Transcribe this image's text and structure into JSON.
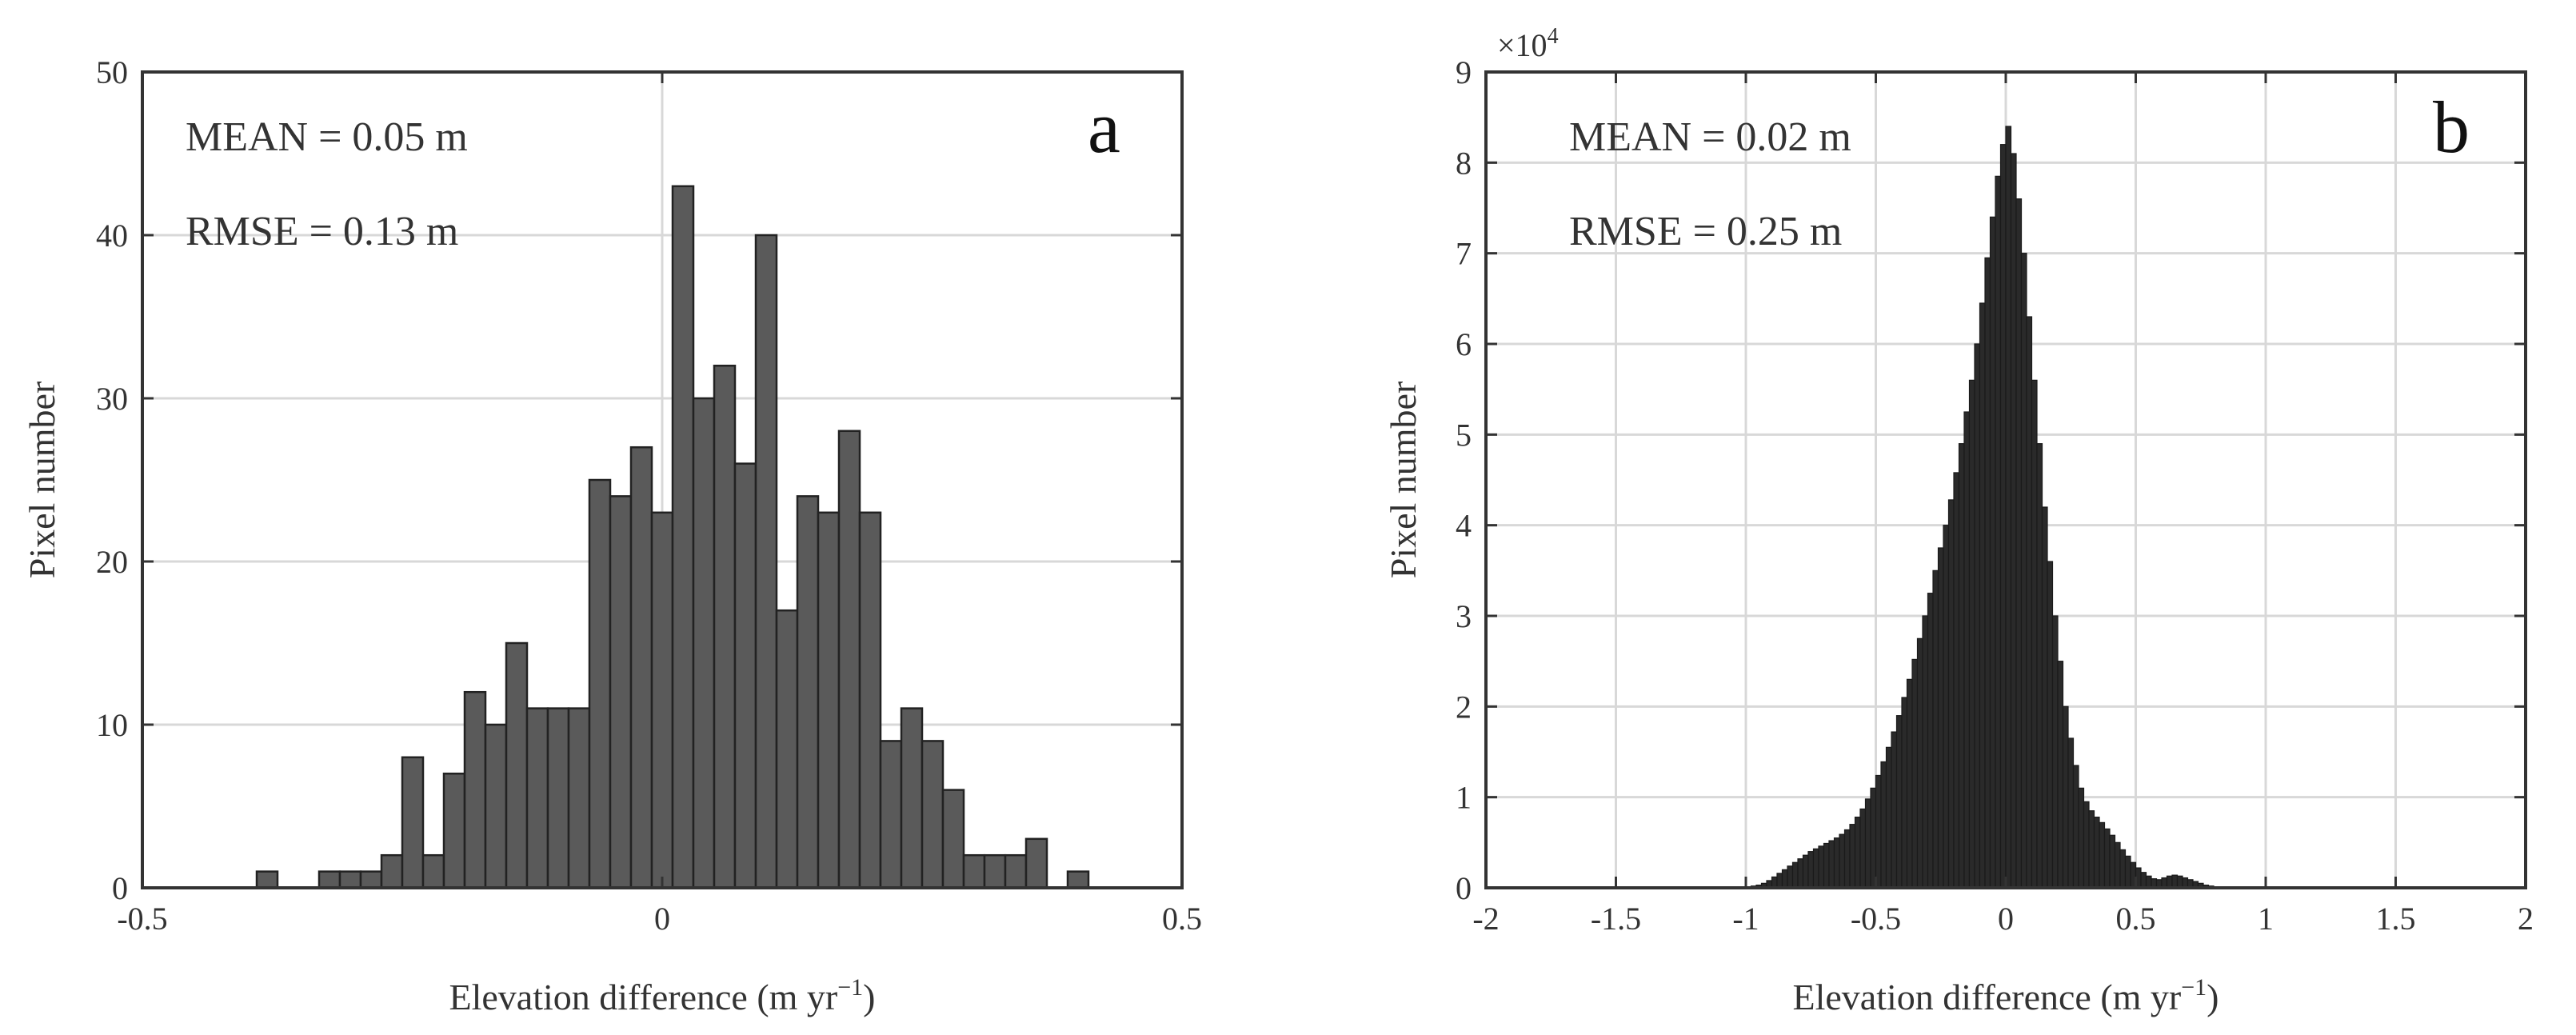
{
  "chart_data": [
    {
      "type": "bar",
      "panel_label": "a",
      "title": "",
      "xlabel": "Elevation difference (m yr",
      "xlabel_superscript": "−1",
      "xlabel_close": ")",
      "ylabel": "Pixel number",
      "xlim": [
        -0.5,
        0.5
      ],
      "ylim": [
        0,
        50
      ],
      "xticks": [
        -0.5,
        0,
        0.5
      ],
      "xtick_labels": [
        "-0.5",
        "0",
        "0.5"
      ],
      "yticks": [
        0,
        10,
        20,
        30,
        40,
        50
      ],
      "ytick_labels": [
        "0",
        "10",
        "20",
        "30",
        "40",
        "50"
      ],
      "grid": true,
      "annotations": [
        "MEAN = 0.05 m",
        "RMSE = 0.13 m"
      ],
      "bin_edges_start": -0.39,
      "bin_width": 0.02,
      "values": [
        1,
        0,
        0,
        1,
        1,
        1,
        2,
        8,
        2,
        7,
        12,
        10,
        15,
        11,
        11,
        11,
        25,
        24,
        27,
        23,
        43,
        30,
        32,
        26,
        40,
        17,
        24,
        23,
        28,
        23,
        9,
        11,
        9,
        6,
        2,
        2,
        2,
        3,
        0,
        1
      ],
      "bar_color": "#5a5a5a"
    },
    {
      "type": "bar",
      "panel_label": "b",
      "title": "",
      "xlabel": "Elevation difference (m yr",
      "xlabel_superscript": "−1",
      "xlabel_close": ")",
      "ylabel": "Pixel number",
      "sci_base": "×10",
      "sci_exponent": "4",
      "xlim": [
        -2,
        2
      ],
      "ylim": [
        0,
        90000
      ],
      "xticks": [
        -2,
        -1.5,
        -1,
        -0.5,
        0,
        0.5,
        1,
        1.5,
        2
      ],
      "xtick_labels": [
        "-2",
        "-1.5",
        "-1",
        "-0.5",
        "0",
        "0.5",
        "1",
        "1.5",
        "2"
      ],
      "yticks": [
        0,
        10000,
        20000,
        30000,
        40000,
        50000,
        60000,
        70000,
        80000,
        90000
      ],
      "ytick_labels": [
        "0",
        "1",
        "2",
        "3",
        "4",
        "5",
        "6",
        "7",
        "8",
        "9"
      ],
      "grid": true,
      "annotations": [
        "MEAN = 0.02 m",
        "RMSE = 0.25 m"
      ],
      "bin_edges_start": -1.0,
      "bin_width": 0.02,
      "values": [
        100,
        200,
        300,
        500,
        800,
        1200,
        1600,
        2000,
        2400,
        2800,
        3200,
        3600,
        4000,
        4300,
        4600,
        4900,
        5200,
        5500,
        5900,
        6400,
        7000,
        7800,
        8700,
        9800,
        11000,
        12400,
        13900,
        15500,
        17200,
        19000,
        21000,
        23000,
        25200,
        27500,
        30000,
        32500,
        35000,
        37500,
        40000,
        42800,
        45800,
        49000,
        52500,
        56000,
        60000,
        64500,
        69500,
        74000,
        78500,
        82000,
        84000,
        81000,
        76000,
        70000,
        63000,
        56000,
        49000,
        42000,
        36000,
        30000,
        25000,
        20000,
        16500,
        13500,
        11000,
        9500,
        8500,
        7800,
        7200,
        6500,
        5800,
        5000,
        4200,
        3500,
        2800,
        2200,
        1700,
        1300,
        1000,
        900,
        1100,
        1300,
        1400,
        1300,
        1100,
        900,
        700,
        500,
        300,
        200,
        100
      ],
      "bar_color": "#2a2a2a"
    }
  ]
}
